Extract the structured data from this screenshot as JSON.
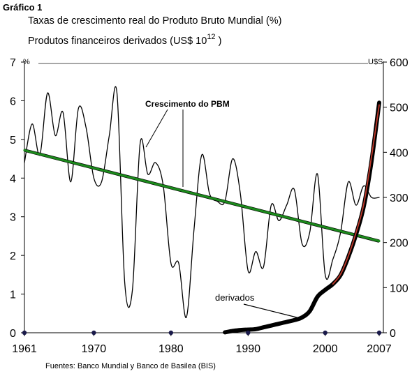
{
  "chart_data": {
    "type": "line",
    "figure_label": "Gráfico 1",
    "title": "Taxas de crescimento real do Produto Bruto Mundial (%)",
    "subtitle": "Produtos financeiros derivados  (US$ 10",
    "subtitle_exponent": "12",
    "subtitle_close": " )",
    "source": "Fuentes: Banco Mundial y Banco de Basilea (BIS)",
    "left_axis": {
      "unit": "%",
      "ticks": [
        "0",
        "1",
        "2",
        "3",
        "4",
        "5",
        "6",
        "7"
      ],
      "ylim": [
        0,
        7
      ]
    },
    "right_axis": {
      "unit": "U$S",
      "ticks": [
        "0",
        "100",
        "200",
        "300",
        "400",
        "500",
        "600"
      ],
      "ylim": [
        0,
        600
      ]
    },
    "x_axis": {
      "ticks": [
        "1961",
        "1970",
        "1980",
        "1990",
        "2000",
        "2007"
      ],
      "xlim": [
        1961,
        2007
      ]
    },
    "annotations": {
      "gdp": "Crescimento do PBM",
      "derivatives": "derivados"
    },
    "series": [
      {
        "key": "gdp_growth",
        "axis": "left",
        "color": "#000000",
        "x": [
          1961,
          1962,
          1963,
          1964,
          1965,
          1966,
          1967,
          1968,
          1969,
          1970,
          1971,
          1972,
          1973,
          1974,
          1975,
          1976,
          1977,
          1978,
          1979,
          1980,
          1981,
          1982,
          1983,
          1984,
          1985,
          1986,
          1987,
          1988,
          1989,
          1990,
          1991,
          1992,
          1993,
          1994,
          1995,
          1996,
          1997,
          1998,
          1999,
          2000,
          2001,
          2002,
          2003,
          2004,
          2005,
          2006,
          2007
        ],
        "y": [
          4.4,
          5.4,
          4.6,
          6.2,
          5.1,
          5.7,
          3.9,
          5.8,
          5.3,
          4.0,
          3.9,
          5.1,
          6.2,
          1.3,
          1.1,
          4.9,
          4.1,
          4.4,
          3.8,
          1.8,
          1.8,
          0.4,
          2.7,
          4.6,
          3.6,
          3.4,
          3.4,
          4.5,
          3.6,
          1.6,
          2.1,
          1.7,
          3.3,
          2.9,
          3.3,
          3.7,
          2.3,
          2.6,
          4.1,
          1.5,
          1.9,
          2.6,
          3.9,
          3.3,
          3.8,
          3.5,
          3.5
        ]
      },
      {
        "key": "gdp_trend",
        "axis": "left",
        "color": "#1c8a1c",
        "x": [
          1961,
          2007
        ],
        "y": [
          4.72,
          2.37
        ]
      },
      {
        "key": "derivatives",
        "axis": "right",
        "color": "#000000",
        "x": [
          1987,
          1988,
          1989,
          1990,
          1991,
          1992,
          1993,
          1994,
          1995,
          1996,
          1997,
          1998,
          1999,
          2000,
          2001,
          2002,
          2003,
          2004,
          2005,
          2006,
          2007
        ],
        "y": [
          1,
          4,
          6,
          7,
          8,
          12,
          16,
          20,
          24,
          28,
          34,
          48,
          80,
          95,
          108,
          128,
          168,
          218,
          280,
          380,
          510
        ]
      },
      {
        "key": "derivatives_fit",
        "axis": "right",
        "color": "#c0392b",
        "x": [
          2001,
          2002,
          2003,
          2004,
          2005,
          2006,
          2007
        ],
        "y": [
          108,
          130,
          170,
          222,
          285,
          390,
          505
        ]
      }
    ],
    "x_markers": [
      1961,
      1970,
      1980,
      1990,
      2000,
      2007
    ]
  }
}
